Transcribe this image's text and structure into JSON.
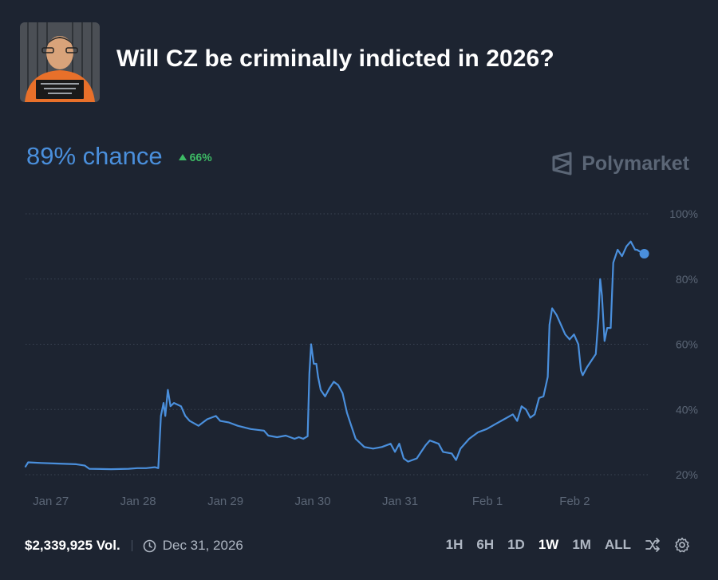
{
  "header": {
    "title": "Will CZ be criminally indicted in 2026?",
    "avatar_alt": "mugshot"
  },
  "summary": {
    "chance": "89% chance",
    "delta": "66%",
    "brand": "Polymarket"
  },
  "footer": {
    "volume": "$2,339,925 Vol.",
    "end_date": "Dec 31, 2026",
    "ranges": [
      "1H",
      "6H",
      "1D",
      "1W",
      "1M",
      "ALL"
    ],
    "active_range": "1W"
  },
  "colors": {
    "background": "#1d2431",
    "line": "#4a8fdc",
    "up": "#3dbb65",
    "muted": "#5b6676"
  },
  "chart_data": {
    "type": "line",
    "ylim": [
      20,
      100
    ],
    "y_ticks": [
      20,
      40,
      60,
      80,
      100
    ],
    "y_tick_labels": [
      "20%",
      "40%",
      "60%",
      "80%",
      "100%"
    ],
    "x_ticks": [
      0,
      1,
      2,
      3,
      4,
      5,
      6
    ],
    "x_tick_labels": [
      "Jan 27",
      "Jan 28",
      "Jan 29",
      "Jan 30",
      "Jan 31",
      "Feb 1",
      "Feb 2"
    ],
    "xlim": [
      -0.28,
      6.9
    ],
    "grid": true,
    "series": [
      {
        "values": [
          [
            -0.28,
            22.5
          ],
          [
            -0.25,
            23.8
          ],
          [
            -0.1,
            23.6
          ],
          [
            0.1,
            23.4
          ],
          [
            0.3,
            23.2
          ],
          [
            0.4,
            22.8
          ],
          [
            0.45,
            21.8
          ],
          [
            0.7,
            21.7
          ],
          [
            0.9,
            21.8
          ],
          [
            1.0,
            22
          ],
          [
            1.1,
            22
          ],
          [
            1.2,
            22.3
          ],
          [
            1.24,
            22
          ],
          [
            1.27,
            38
          ],
          [
            1.3,
            42
          ],
          [
            1.32,
            38
          ],
          [
            1.35,
            46
          ],
          [
            1.38,
            41
          ],
          [
            1.42,
            42
          ],
          [
            1.5,
            41
          ],
          [
            1.55,
            38
          ],
          [
            1.6,
            36.5
          ],
          [
            1.7,
            35
          ],
          [
            1.8,
            37
          ],
          [
            1.9,
            38
          ],
          [
            1.95,
            36.5
          ],
          [
            2.05,
            36
          ],
          [
            2.15,
            35
          ],
          [
            2.3,
            34
          ],
          [
            2.45,
            33.5
          ],
          [
            2.5,
            32
          ],
          [
            2.6,
            31.5
          ],
          [
            2.7,
            32
          ],
          [
            2.8,
            31
          ],
          [
            2.85,
            31.5
          ],
          [
            2.9,
            31
          ],
          [
            2.95,
            31.8
          ],
          [
            2.97,
            51
          ],
          [
            2.99,
            60
          ],
          [
            3.02,
            54
          ],
          [
            3.05,
            54
          ],
          [
            3.07,
            50
          ],
          [
            3.1,
            46
          ],
          [
            3.15,
            44
          ],
          [
            3.2,
            46.5
          ],
          [
            3.25,
            48.5
          ],
          [
            3.3,
            47.5
          ],
          [
            3.35,
            45
          ],
          [
            3.4,
            39
          ],
          [
            3.45,
            35
          ],
          [
            3.5,
            31
          ],
          [
            3.6,
            28.5
          ],
          [
            3.7,
            28
          ],
          [
            3.8,
            28.5
          ],
          [
            3.9,
            29.5
          ],
          [
            3.95,
            27
          ],
          [
            4.0,
            29.5
          ],
          [
            4.05,
            25
          ],
          [
            4.1,
            24
          ],
          [
            4.2,
            25
          ],
          [
            4.25,
            27
          ],
          [
            4.3,
            29
          ],
          [
            4.35,
            30.5
          ],
          [
            4.45,
            29.5
          ],
          [
            4.5,
            27
          ],
          [
            4.6,
            26.5
          ],
          [
            4.65,
            24.5
          ],
          [
            4.7,
            28
          ],
          [
            4.8,
            31
          ],
          [
            4.9,
            33
          ],
          [
            5.0,
            34
          ],
          [
            5.1,
            35.5
          ],
          [
            5.2,
            37
          ],
          [
            5.3,
            38.5
          ],
          [
            5.35,
            36.5
          ],
          [
            5.4,
            41
          ],
          [
            5.45,
            40
          ],
          [
            5.5,
            37.5
          ],
          [
            5.55,
            38.5
          ],
          [
            5.6,
            43.5
          ],
          [
            5.65,
            44
          ],
          [
            5.7,
            50
          ],
          [
            5.72,
            66
          ],
          [
            5.75,
            71
          ],
          [
            5.8,
            69
          ],
          [
            5.85,
            66
          ],
          [
            5.9,
            63
          ],
          [
            5.95,
            61.5
          ],
          [
            6.0,
            63
          ],
          [
            6.05,
            60
          ],
          [
            6.08,
            52
          ],
          [
            6.1,
            50.5
          ],
          [
            6.15,
            53
          ],
          [
            6.2,
            55
          ],
          [
            6.25,
            57
          ],
          [
            6.28,
            68
          ],
          [
            6.3,
            80
          ],
          [
            6.32,
            75
          ],
          [
            6.35,
            61
          ],
          [
            6.38,
            65
          ],
          [
            6.42,
            65
          ],
          [
            6.45,
            85
          ],
          [
            6.5,
            89
          ],
          [
            6.55,
            87
          ],
          [
            6.6,
            90
          ],
          [
            6.65,
            91.5
          ],
          [
            6.7,
            89
          ],
          [
            6.72,
            89
          ],
          [
            6.75,
            88.5
          ]
        ]
      }
    ]
  }
}
